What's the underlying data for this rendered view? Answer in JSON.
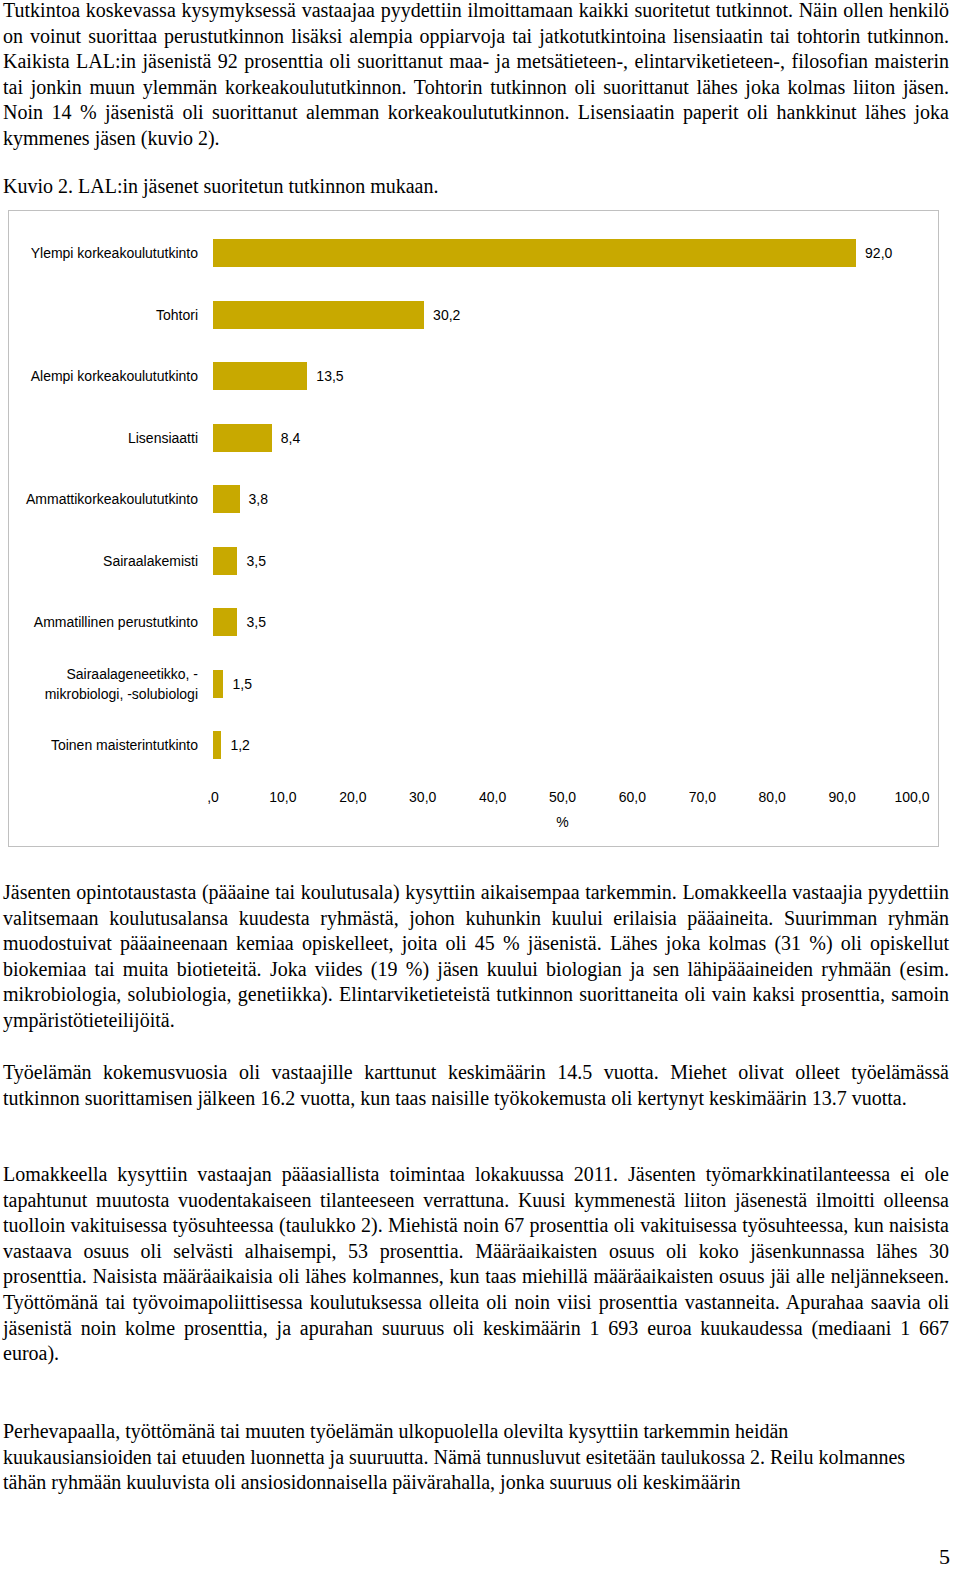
{
  "paragraphs_before": [
    "Tutkintoa koskevassa kysymyksessä vastaajaa pyydettiin ilmoittamaan kaikki suoritetut tutkinnot. Näin ollen henkilö on voinut suorittaa perustutkinnon lisäksi alempia oppiarvoja tai jatkotutkintoina lisensiaatin tai tohtorin tutkinnon. Kaikista LAL:in jäsenistä 92 prosenttia oli suorittanut maa- ja metsätieteen-, elintarviketieteen-, filosofian maisterin tai jonkin muun ylemmän korkeakoulututkinnon. Tohtorin tutkinnon oli suorittanut lähes joka kolmas liiton jäsen. Noin 14 % jäsenistä oli suorittanut alemman korkeakoulututkinnon. Lisensiaatin paperit oli hankkinut lähes joka kymmenes jäsen (kuvio 2)."
  ],
  "figure_caption": "Kuvio 2. LAL:in jäsenet suoritetun tutkinnon mukaan.",
  "chart_data": {
    "type": "bar",
    "orientation": "horizontal",
    "categories": [
      "Ylempi korkeakoulututkinto",
      "Tohtori",
      "Alempi korkeakoulututkinto",
      "Lisensiaatti",
      "Ammattikorkeakoulututkinto",
      "Sairaalakemisti",
      "Ammatillinen perustutkinto",
      "Sairaalageneetikko, -mikrobiologi, -solubiologi",
      "Toinen maisterintutkinto"
    ],
    "values": [
      92.0,
      30.2,
      13.5,
      8.4,
      3.8,
      3.5,
      3.5,
      1.5,
      1.2
    ],
    "value_labels": [
      "92,0",
      "30,2",
      "13,5",
      "8,4",
      "3,8",
      "3,5",
      "3,5",
      "1,5",
      "1,2"
    ],
    "data_labels": true,
    "color": "#c8a900",
    "grid": false,
    "xlabel": "%",
    "xlim": [
      0,
      100
    ],
    "xticks": [
      {
        "value": 0,
        "label": ",0"
      },
      {
        "value": 10,
        "label": "10,0"
      },
      {
        "value": 20,
        "label": "20,0"
      },
      {
        "value": 30,
        "label": "30,0"
      },
      {
        "value": 40,
        "label": "40,0"
      },
      {
        "value": 50,
        "label": "50,0"
      },
      {
        "value": 60,
        "label": "60,0"
      },
      {
        "value": 70,
        "label": "70,0"
      },
      {
        "value": 80,
        "label": "80,0"
      },
      {
        "value": 90,
        "label": "90,0"
      },
      {
        "value": 100,
        "label": "100,0"
      }
    ]
  },
  "paragraphs_after": [
    "Jäsenten opintotaustasta (pääaine tai koulutusala) kysyttiin aikaisempaa tarkemmin. Lomakkeella vastaajia pyydettiin valitsemaan koulutusalansa kuudesta ryhmästä, johon kuhunkin kuului erilaisia pääaineita. Suurimman ryhmän muodostuivat pääaineenaan kemiaa opiskelleet, joita oli 45 % jäsenistä. Lähes joka kolmas (31 %) oli opiskellut biokemiaa tai muita biotieteitä. Joka viides (19 %) jäsen kuului biologian ja sen lähipääaineiden ryhmään (esim. mikrobiologia, solubiologia, genetiikka). Elintarviketieteistä tutkinnon suorittaneita oli vain kaksi prosenttia, samoin ympäristötieteilijöitä.",
    "Työelämän kokemusvuosia oli vastaajille karttunut keskimäärin 14.5 vuotta. Miehet olivat olleet työelämässä tutkinnon suorittamisen jälkeen 16.2 vuotta, kun taas naisille työkokemusta oli kertynyt keskimäärin 13.7 vuotta.",
    "Lomakkeella kysyttiin vastaajan pääasiallista toimintaa lokakuussa 2011. Jäsenten työmarkkinatilanteessa ei ole tapahtunut muutosta vuodentakaiseen tilanteeseen verrattuna. Kuusi kymmenestä liiton jäsenestä ilmoitti olleensa tuolloin vakituisessa työsuhteessa (taulukko 2). Miehistä noin 67 prosenttia oli vakituisessa työsuhteessa, kun naisista vastaava osuus oli selvästi alhaisempi, 53 prosenttia. Määräaikaisten osuus oli koko jäsenkunnassa lähes 30 prosenttia. Naisista määräaikaisia oli lähes kolmannes, kun taas miehillä määräaikaisten osuus jäi alle neljännekseen. Työttömänä tai työvoimapoliittisessa koulutuksessa olleita oli noin viisi prosenttia vastanneita. Apurahaa saavia oli jäsenistä noin kolme prosenttia, ja apurahan suuruus oli keskimäärin 1 693 euroa kuukaudessa (mediaani 1 667 euroa).",
    "Perhevapaalla, työttömänä tai muuten työelämän ulkopuolella olevilta kysyttiin tarkemmin heidän kuukausiansioiden tai etuuden luonnetta ja suuruutta. Nämä tunnusluvut esitetään taulukossa 2. Reilu kolmannes tähän ryhmään kuuluvista oli ansiosidonnaisella päivärahalla, jonka suuruus oli keskimäärin"
  ],
  "page_number": "5"
}
